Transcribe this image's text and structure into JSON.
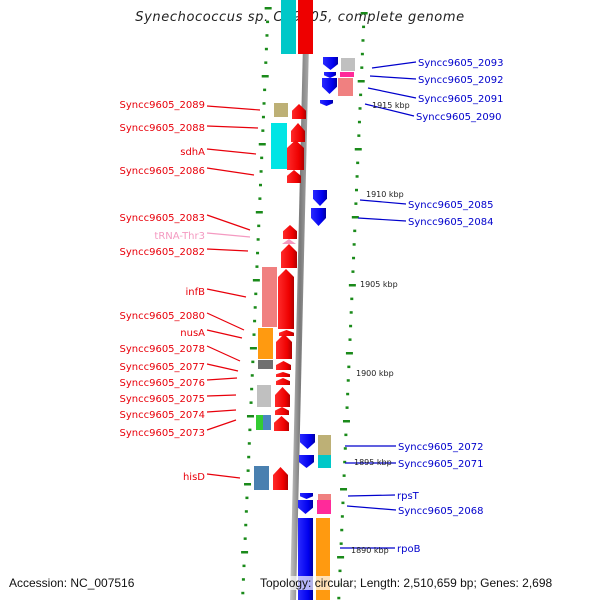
{
  "title": "Synechococcus sp. CC9605, complete genome",
  "footer": {
    "accession": "Accession: NC_007516",
    "summary": "Topology: circular; Length: 2,510,659 bp; Genes: 2,698"
  },
  "colors": {
    "reverse_label": "#e8000b",
    "forward_label": "#0000cc",
    "trna_label": "#f49ac1",
    "tick": "#1a8a1a",
    "backbone": "#8a8a8a"
  },
  "scale_labels": [
    "1915 kbp",
    "1910 kbp",
    "1905 kbp",
    "1900 kbp",
    "1895 kbp",
    "1890 kbp"
  ],
  "left_labels": [
    {
      "text": "Syncc9605_2089",
      "kind": "gene"
    },
    {
      "text": "Syncc9605_2088",
      "kind": "gene"
    },
    {
      "text": "sdhA",
      "kind": "gene"
    },
    {
      "text": "Syncc9605_2086",
      "kind": "gene"
    },
    {
      "text": "Syncc9605_2083",
      "kind": "gene"
    },
    {
      "text": "tRNA-Thr3",
      "kind": "trna"
    },
    {
      "text": "Syncc9605_2082",
      "kind": "gene"
    },
    {
      "text": "infB",
      "kind": "gene"
    },
    {
      "text": "Syncc9605_2080",
      "kind": "gene"
    },
    {
      "text": "nusA",
      "kind": "gene"
    },
    {
      "text": "Syncc9605_2078",
      "kind": "gene"
    },
    {
      "text": "Syncc9605_2077",
      "kind": "gene"
    },
    {
      "text": "Syncc9605_2076",
      "kind": "gene"
    },
    {
      "text": "Syncc9605_2075",
      "kind": "gene"
    },
    {
      "text": "Syncc9605_2074",
      "kind": "gene"
    },
    {
      "text": "Syncc9605_2073",
      "kind": "gene"
    },
    {
      "text": "hisD",
      "kind": "gene"
    }
  ],
  "right_labels": [
    {
      "text": "Syncc9605_2093"
    },
    {
      "text": "Syncc9605_2092"
    },
    {
      "text": "Syncc9605_2091"
    },
    {
      "text": "Syncc9605_2090"
    },
    {
      "text": "Syncc9605_2085"
    },
    {
      "text": "Syncc9605_2084"
    },
    {
      "text": "Syncc9605_2072"
    },
    {
      "text": "Syncc9605_2071"
    },
    {
      "text": "rpsT"
    },
    {
      "text": "Syncc9605_2068"
    },
    {
      "text": "rpoB"
    }
  ]
}
